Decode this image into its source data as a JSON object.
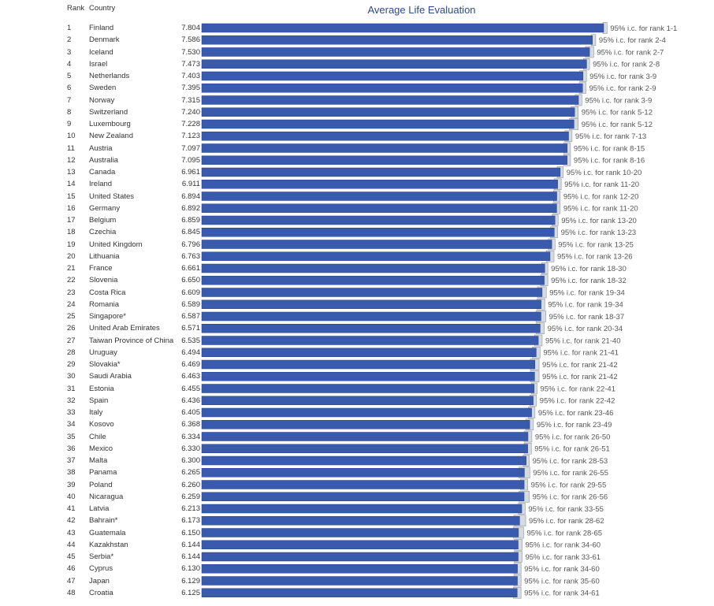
{
  "header": {
    "rank_label": "Rank",
    "country_label": "Country"
  },
  "colors": {
    "bar": "#3a5aad",
    "bar_border": "#2b4590",
    "ci_fill": "#d6dbe0",
    "ci_line": "#8f969e",
    "ci_text": "#555555",
    "title": "#2e4a8a"
  },
  "chart_data": {
    "type": "bar",
    "orientation": "horizontal",
    "title": "Average Life Evaluation",
    "xlim": [
      0,
      7.804
    ],
    "grid": false,
    "rows": [
      {
        "rank": "1",
        "country": "Finland",
        "value": 7.804,
        "score_label": "7.804",
        "ci_low": 7.79,
        "ci_high": 7.87,
        "ci_label": "95% i.c. for rank 1-1"
      },
      {
        "rank": "2",
        "country": "Denmark",
        "value": 7.586,
        "score_label": "7.586",
        "ci_low": 7.56,
        "ci_high": 7.65,
        "ci_label": "95% i.c. for rank 2-4"
      },
      {
        "rank": "3",
        "country": "Iceland",
        "value": 7.53,
        "score_label": "7.530",
        "ci_low": 7.45,
        "ci_high": 7.61,
        "ci_label": "95% i.c. for rank 2-7"
      },
      {
        "rank": "4",
        "country": "Israel",
        "value": 7.473,
        "score_label": "7.473",
        "ci_low": 7.41,
        "ci_high": 7.53,
        "ci_label": "95% i.c. for rank 2-8"
      },
      {
        "rank": "5",
        "country": "Netherlands",
        "value": 7.403,
        "score_label": "7.403",
        "ci_low": 7.34,
        "ci_high": 7.47,
        "ci_label": "95% i.c. for rank 3-9"
      },
      {
        "rank": "6",
        "country": "Sweden",
        "value": 7.395,
        "score_label": "7.395",
        "ci_low": 7.33,
        "ci_high": 7.46,
        "ci_label": "95% i.c. for rank 2-9"
      },
      {
        "rank": "7",
        "country": "Norway",
        "value": 7.315,
        "score_label": "7.315",
        "ci_low": 7.25,
        "ci_high": 7.38,
        "ci_label": "95% i.c. for rank 3-9"
      },
      {
        "rank": "8",
        "country": "Switzerland",
        "value": 7.24,
        "score_label": "7.240",
        "ci_low": 7.17,
        "ci_high": 7.31,
        "ci_label": "95% i.c. for rank 5-12"
      },
      {
        "rank": "9",
        "country": "Luxembourg",
        "value": 7.228,
        "score_label": "7.228",
        "ci_low": 7.14,
        "ci_high": 7.31,
        "ci_label": "95% i.c. for rank 5-12"
      },
      {
        "rank": "10",
        "country": "New Zealand",
        "value": 7.123,
        "score_label": "7.123",
        "ci_low": 7.05,
        "ci_high": 7.19,
        "ci_label": "95% i.c. for rank 7-13"
      },
      {
        "rank": "11",
        "country": "Austria",
        "value": 7.097,
        "score_label": "7.097",
        "ci_low": 7.03,
        "ci_high": 7.16,
        "ci_label": "95% i.c. for rank 8-15"
      },
      {
        "rank": "12",
        "country": "Australia",
        "value": 7.095,
        "score_label": "7.095",
        "ci_low": 7.03,
        "ci_high": 7.16,
        "ci_label": "95% i.c. for rank 8-16"
      },
      {
        "rank": "13",
        "country": "Canada",
        "value": 6.961,
        "score_label": "6.961",
        "ci_low": 6.9,
        "ci_high": 7.02,
        "ci_label": "95% i.c. for rank 10-20"
      },
      {
        "rank": "14",
        "country": "Ireland",
        "value": 6.911,
        "score_label": "6.911",
        "ci_low": 6.84,
        "ci_high": 6.98,
        "ci_label": "95% i.c. for rank 11-20"
      },
      {
        "rank": "15",
        "country": "United States",
        "value": 6.894,
        "score_label": "6.894",
        "ci_low": 6.83,
        "ci_high": 6.96,
        "ci_label": "95% i.c. for rank 12-20"
      },
      {
        "rank": "16",
        "country": "Germany",
        "value": 6.892,
        "score_label": "6.892",
        "ci_low": 6.82,
        "ci_high": 6.96,
        "ci_label": "95% i.c. for rank 11-20"
      },
      {
        "rank": "17",
        "country": "Belgium",
        "value": 6.859,
        "score_label": "6.859",
        "ci_low": 6.8,
        "ci_high": 6.92,
        "ci_label": "95% i.c. for rank 13-20"
      },
      {
        "rank": "18",
        "country": "Czechia",
        "value": 6.845,
        "score_label": "6.845",
        "ci_low": 6.77,
        "ci_high": 6.91,
        "ci_label": "95% i.c. for rank 13-23"
      },
      {
        "rank": "19",
        "country": "United Kingdom",
        "value": 6.796,
        "score_label": "6.796",
        "ci_low": 6.73,
        "ci_high": 6.86,
        "ci_label": "95% i.c. for rank 13-25"
      },
      {
        "rank": "20",
        "country": "Lithuania",
        "value": 6.763,
        "score_label": "6.763",
        "ci_low": 6.69,
        "ci_high": 6.84,
        "ci_label": "95% i.c. for rank 13-26"
      },
      {
        "rank": "21",
        "country": "France",
        "value": 6.661,
        "score_label": "6.661",
        "ci_low": 6.6,
        "ci_high": 6.72,
        "ci_label": "95% i.c. for rank 18-30"
      },
      {
        "rank": "22",
        "country": "Slovenia",
        "value": 6.65,
        "score_label": "6.650",
        "ci_low": 6.58,
        "ci_high": 6.72,
        "ci_label": "95% i.c. for rank 18-32"
      },
      {
        "rank": "23",
        "country": "Costa Rica",
        "value": 6.609,
        "score_label": "6.609",
        "ci_low": 6.52,
        "ci_high": 6.69,
        "ci_label": "95% i.c. for rank 19-34"
      },
      {
        "rank": "24",
        "country": "Romania",
        "value": 6.589,
        "score_label": "6.589",
        "ci_low": 6.51,
        "ci_high": 6.66,
        "ci_label": "95% i.c. for rank 19-34"
      },
      {
        "rank": "25",
        "country": "Singapore*",
        "value": 6.587,
        "score_label": "6.587",
        "ci_low": 6.49,
        "ci_high": 6.68,
        "ci_label": "95% i.c. for rank 18-37"
      },
      {
        "rank": "26",
        "country": "United Arab Emirates",
        "value": 6.571,
        "score_label": "6.571",
        "ci_low": 6.49,
        "ci_high": 6.65,
        "ci_label": "95% i.c. for rank 20-34"
      },
      {
        "rank": "27",
        "country": "Taiwan Province of China",
        "value": 6.535,
        "score_label": "6.535",
        "ci_low": 6.46,
        "ci_high": 6.61,
        "ci_label": "95% i.c. for rank 21-40"
      },
      {
        "rank": "28",
        "country": "Uruguay",
        "value": 6.494,
        "score_label": "6.494",
        "ci_low": 6.42,
        "ci_high": 6.57,
        "ci_label": "95% i.c. for rank 21-41"
      },
      {
        "rank": "29",
        "country": "Slovakia*",
        "value": 6.469,
        "score_label": "6.469",
        "ci_low": 6.38,
        "ci_high": 6.55,
        "ci_label": "95% i.c. for rank 21-42"
      },
      {
        "rank": "30",
        "country": "Saudi Arabia",
        "value": 6.463,
        "score_label": "6.463",
        "ci_low": 6.38,
        "ci_high": 6.55,
        "ci_label": "95% i.c. for rank 21-42"
      },
      {
        "rank": "31",
        "country": "Estonia",
        "value": 6.455,
        "score_label": "6.455",
        "ci_low": 6.4,
        "ci_high": 6.51,
        "ci_label": "95% i.c. for rank 22-41"
      },
      {
        "rank": "32",
        "country": "Spain",
        "value": 6.436,
        "score_label": "6.436",
        "ci_low": 6.37,
        "ci_high": 6.5,
        "ci_label": "95% i.c. for rank 22-42"
      },
      {
        "rank": "33",
        "country": "Italy",
        "value": 6.405,
        "score_label": "6.405",
        "ci_low": 6.34,
        "ci_high": 6.47,
        "ci_label": "95% i.c. for rank 23-46"
      },
      {
        "rank": "34",
        "country": "Kosovo",
        "value": 6.368,
        "score_label": "6.368",
        "ci_low": 6.29,
        "ci_high": 6.44,
        "ci_label": "95% i.c. for rank 23-49"
      },
      {
        "rank": "35",
        "country": "Chile",
        "value": 6.334,
        "score_label": "6.334",
        "ci_low": 6.26,
        "ci_high": 6.41,
        "ci_label": "95% i.c. for rank 26-50"
      },
      {
        "rank": "36",
        "country": "Mexico",
        "value": 6.33,
        "score_label": "6.330",
        "ci_low": 6.26,
        "ci_high": 6.4,
        "ci_label": "95% i.c. for rank 26-51"
      },
      {
        "rank": "37",
        "country": "Malta",
        "value": 6.3,
        "score_label": "6.300",
        "ci_low": 6.24,
        "ci_high": 6.36,
        "ci_label": "95% i.c. for rank 28-53"
      },
      {
        "rank": "38",
        "country": "Panama",
        "value": 6.265,
        "score_label": "6.265",
        "ci_low": 6.16,
        "ci_high": 6.37,
        "ci_label": "95% i.c. for rank 26-55"
      },
      {
        "rank": "39",
        "country": "Poland",
        "value": 6.26,
        "score_label": "6.260",
        "ci_low": 6.19,
        "ci_high": 6.33,
        "ci_label": "95% i.c. for rank 29-55"
      },
      {
        "rank": "40",
        "country": "Nicaragua",
        "value": 6.259,
        "score_label": "6.259",
        "ci_low": 6.16,
        "ci_high": 6.36,
        "ci_label": "95% i.c. for rank 26-56"
      },
      {
        "rank": "41",
        "country": "Latvia",
        "value": 6.213,
        "score_label": "6.213",
        "ci_low": 6.15,
        "ci_high": 6.28,
        "ci_label": "95% i.c. for rank 33-55"
      },
      {
        "rank": "42",
        "country": "Bahrain*",
        "value": 6.173,
        "score_label": "6.173",
        "ci_low": 6.06,
        "ci_high": 6.29,
        "ci_label": "95% i.c. for rank 28-62"
      },
      {
        "rank": "43",
        "country": "Guatemala",
        "value": 6.15,
        "score_label": "6.150",
        "ci_low": 6.05,
        "ci_high": 6.25,
        "ci_label": "95% i.c. for rank 28-65"
      },
      {
        "rank": "44",
        "country": "Kazakhstan",
        "value": 6.144,
        "score_label": "6.144",
        "ci_low": 6.07,
        "ci_high": 6.22,
        "ci_label": "95% i.c. for rank 34-60"
      },
      {
        "rank": "45",
        "country": "Serbia*",
        "value": 6.144,
        "score_label": "6.144",
        "ci_low": 6.07,
        "ci_high": 6.22,
        "ci_label": "95% i.c. for rank 33-61"
      },
      {
        "rank": "46",
        "country": "Cyprus",
        "value": 6.13,
        "score_label": "6.130",
        "ci_low": 6.06,
        "ci_high": 6.2,
        "ci_label": "95% i.c. for rank 34-60"
      },
      {
        "rank": "47",
        "country": "Japan",
        "value": 6.129,
        "score_label": "6.129",
        "ci_low": 6.06,
        "ci_high": 6.2,
        "ci_label": "95% i.c. for rank 35-60"
      },
      {
        "rank": "48",
        "country": "Croatia",
        "value": 6.125,
        "score_label": "6.125",
        "ci_low": 6.05,
        "ci_high": 6.2,
        "ci_label": "95% i.c. for rank 34-61"
      }
    ]
  }
}
